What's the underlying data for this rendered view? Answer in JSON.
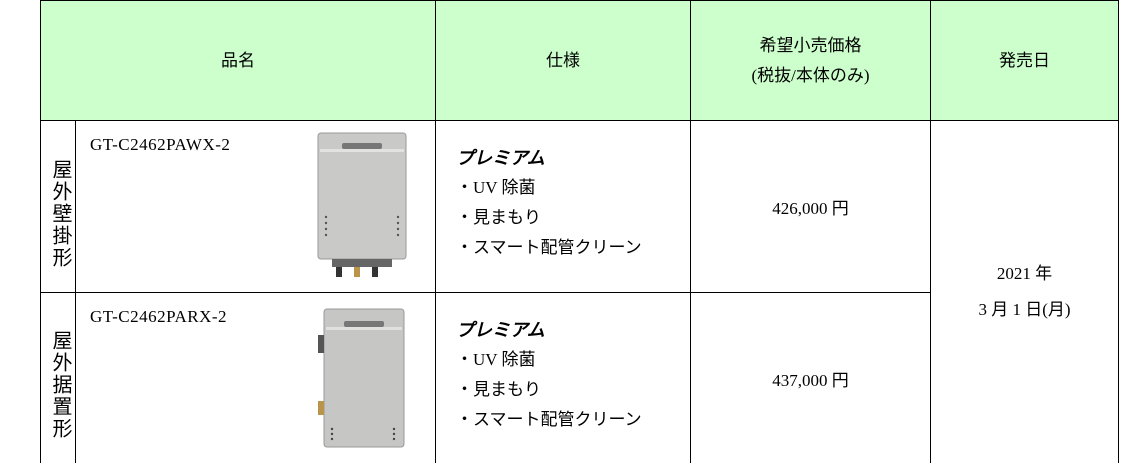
{
  "table": {
    "header": [
      "品名",
      "仕様",
      "希望小売価格",
      "(税抜/本体のみ)",
      "発売日"
    ],
    "rows": [
      {
        "category": "屋外壁掛形",
        "model": "GT-C2462PAWX-2",
        "spec_title": "プレミアム",
        "spec_items": [
          "・UV 除菌",
          "・見まもり",
          "・スマート配管クリーン"
        ],
        "price": "426,000 円"
      },
      {
        "category": "屋外据置形",
        "model": "GT-C2462PARX-2",
        "spec_title": "プレミアム",
        "spec_items": [
          "・UV 除菌",
          "・見まもり",
          "・スマート配管クリーン"
        ],
        "price": "437,000 円"
      }
    ],
    "release_date": [
      "2021 年",
      "3 月 1 日(月)"
    ]
  }
}
